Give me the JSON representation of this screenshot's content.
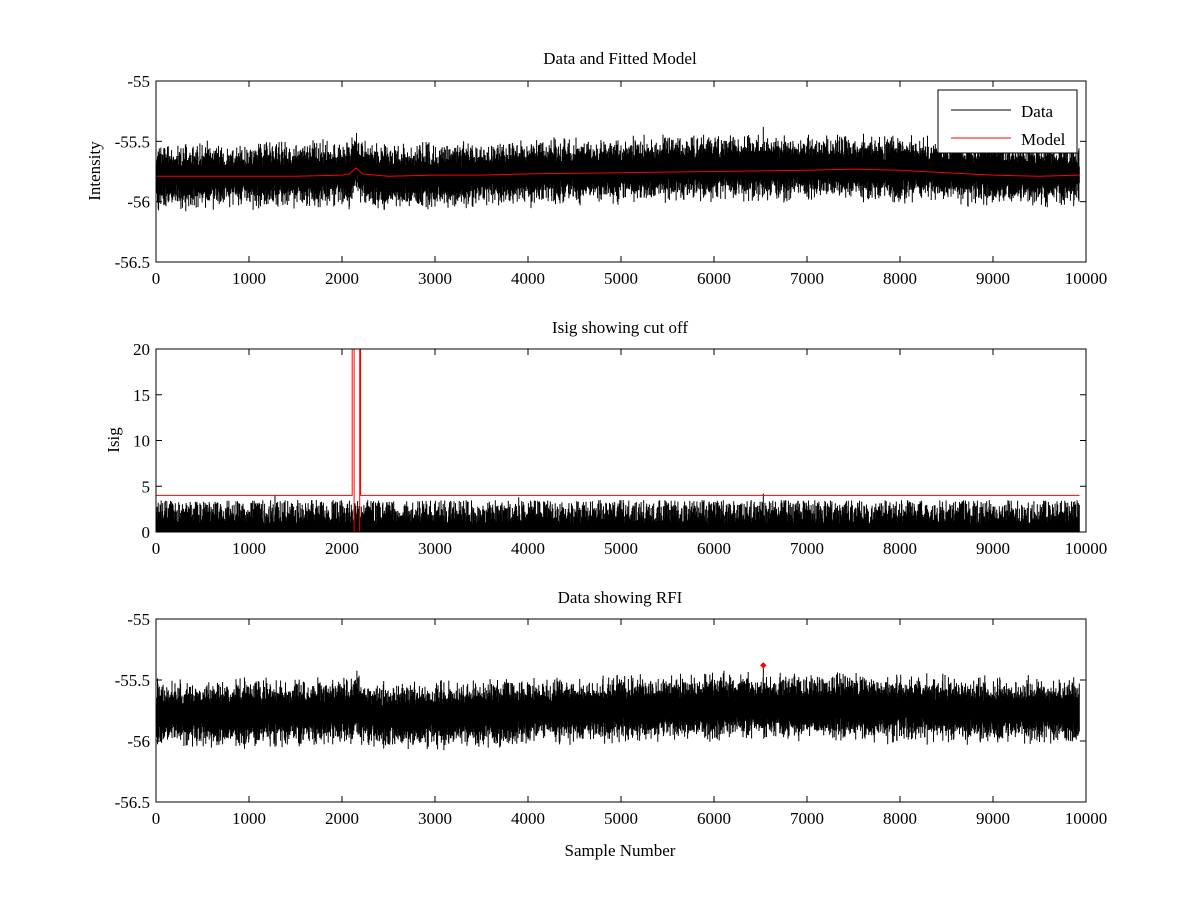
{
  "figure": {
    "colors": {
      "data": "#000000",
      "model": "#ff0000",
      "rfi": "#ff0000",
      "axes": "#000000",
      "background": "#ffffff"
    }
  },
  "chart_data": [
    {
      "type": "line",
      "title": "Data and Fitted Model",
      "xlabel": "",
      "ylabel": "Intensity",
      "xlim": [
        0,
        10000
      ],
      "ylim": [
        -56.5,
        -55
      ],
      "xticks": [
        0,
        1000,
        2000,
        3000,
        4000,
        5000,
        6000,
        7000,
        8000,
        9000,
        10000
      ],
      "yticks": [
        -55,
        -55.5,
        -56,
        -56.5
      ],
      "legend": {
        "placement": "top-right",
        "entries": [
          "Data",
          "Model"
        ]
      },
      "series": [
        {
          "name": "Data",
          "color": "#000000",
          "kind": "noisy-signal",
          "n_samples": 9930,
          "noise_amplitude": 0.3,
          "baseline": [
            [
              0,
              -55.79
            ],
            [
              2100,
              -55.77
            ],
            [
              2150,
              -55.66
            ],
            [
              2200,
              -55.74
            ],
            [
              2400,
              -55.8
            ],
            [
              3000,
              -55.79
            ],
            [
              4000,
              -55.76
            ],
            [
              5000,
              -55.74
            ],
            [
              6000,
              -55.72
            ],
            [
              7000,
              -55.72
            ],
            [
              8000,
              -55.73
            ],
            [
              9000,
              -55.76
            ],
            [
              9930,
              -55.77
            ]
          ],
          "spikes": [
            [
              6530,
              -55.38
            ]
          ]
        },
        {
          "name": "Model",
          "color": "#ff0000",
          "points": [
            [
              0,
              -55.79
            ],
            [
              1000,
              -55.79
            ],
            [
              1500,
              -55.79
            ],
            [
              2000,
              -55.78
            ],
            [
              2080,
              -55.77
            ],
            [
              2150,
              -55.72
            ],
            [
              2220,
              -55.77
            ],
            [
              2500,
              -55.79
            ],
            [
              3000,
              -55.78
            ],
            [
              3500,
              -55.78
            ],
            [
              4000,
              -55.77
            ],
            [
              5000,
              -55.76
            ],
            [
              6000,
              -55.75
            ],
            [
              7000,
              -55.74
            ],
            [
              7500,
              -55.73
            ],
            [
              8000,
              -55.74
            ],
            [
              8500,
              -55.76
            ],
            [
              9000,
              -55.78
            ],
            [
              9500,
              -55.79
            ],
            [
              9930,
              -55.78
            ]
          ]
        }
      ]
    },
    {
      "type": "line",
      "title": "Isig showing cut off",
      "xlabel": "",
      "ylabel": "Isig",
      "xlim": [
        0,
        10000
      ],
      "ylim": [
        0,
        20
      ],
      "xticks": [
        0,
        1000,
        2000,
        3000,
        4000,
        5000,
        6000,
        7000,
        8000,
        9000,
        10000
      ],
      "yticks": [
        0,
        5,
        10,
        15,
        20
      ],
      "series": [
        {
          "name": "Isig",
          "color": "#000000",
          "kind": "noise",
          "n_samples": 9930,
          "range": [
            0,
            3.5
          ],
          "spikes": [
            [
              1280,
              4.0
            ],
            [
              3900,
              3.8
            ],
            [
              6530,
              4.2
            ]
          ]
        },
        {
          "name": "Cut off",
          "color": "#ff0000",
          "points": [
            [
              0,
              4
            ],
            [
              2110,
              4
            ],
            [
              2110,
              20
            ],
            [
              2130,
              20
            ],
            [
              2130,
              0
            ],
            [
              2190,
              0
            ],
            [
              2190,
              20
            ],
            [
              2200,
              20
            ],
            [
              2200,
              4
            ],
            [
              9930,
              4
            ]
          ]
        }
      ]
    },
    {
      "type": "line",
      "title": "Data showing RFI",
      "xlabel": "Sample Number",
      "ylabel": "",
      "xlim": [
        0,
        10000
      ],
      "ylim": [
        -56.5,
        -55
      ],
      "xticks": [
        0,
        1000,
        2000,
        3000,
        4000,
        5000,
        6000,
        7000,
        8000,
        9000,
        10000
      ],
      "yticks": [
        -55,
        -55.5,
        -56,
        -56.5
      ],
      "series": [
        {
          "name": "Data",
          "color": "#000000",
          "kind": "noisy-signal",
          "n_samples": 9930,
          "noise_amplitude": 0.3,
          "baseline": [
            [
              0,
              -55.78
            ],
            [
              2100,
              -55.76
            ],
            [
              2150,
              -55.68
            ],
            [
              2200,
              -55.75
            ],
            [
              2400,
              -55.8
            ],
            [
              3000,
              -55.79
            ],
            [
              4000,
              -55.76
            ],
            [
              5000,
              -55.74
            ],
            [
              6000,
              -55.72
            ],
            [
              7000,
              -55.72
            ],
            [
              8000,
              -55.73
            ],
            [
              9000,
              -55.75
            ],
            [
              9930,
              -55.76
            ]
          ],
          "spikes": [
            [
              6530,
              -55.38
            ]
          ]
        },
        {
          "name": "RFI",
          "color": "#ff0000",
          "kind": "markers",
          "points": [
            [
              6530,
              -55.38
            ]
          ]
        }
      ]
    }
  ]
}
